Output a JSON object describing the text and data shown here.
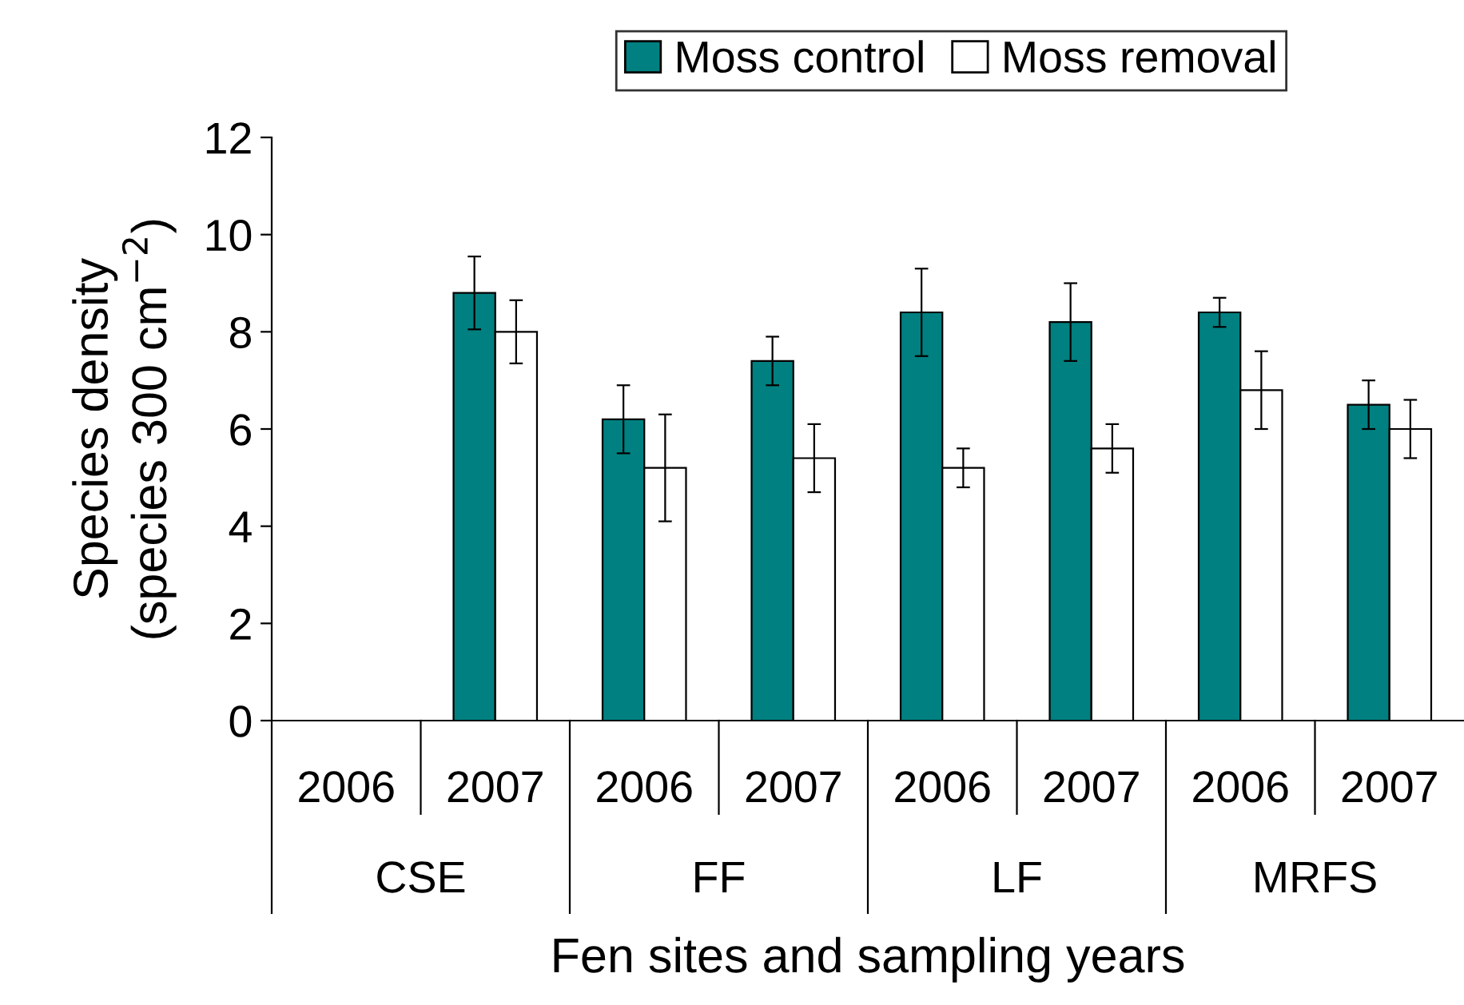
{
  "chart_data": {
    "type": "bar",
    "xlabel": "Fen sites and sampling years",
    "ylabel": "Species density\n(species 300 cm$^{−2}$)",
    "categories": [
      "2006",
      "2007",
      "2006",
      "2007",
      "2006",
      "2007",
      "2006",
      "2007"
    ],
    "annotations": [
      "CSE",
      "FF",
      "LF",
      "MRFS"
    ],
    "series": [
      {
        "name": "Moss control",
        "color": "#008080",
        "values": [
          null,
          8.8,
          6.2,
          7.4,
          8.4,
          8.2,
          8.4,
          6.5
        ],
        "errors": [
          null,
          0.75,
          0.7,
          0.5,
          0.9,
          0.8,
          0.3,
          0.5
        ]
      },
      {
        "name": "Moss removal",
        "color": "#ffffff",
        "values": [
          null,
          8.0,
          5.2,
          5.4,
          5.2,
          5.6,
          6.8,
          6.0
        ],
        "errors": [
          null,
          0.65,
          1.1,
          0.7,
          0.4,
          0.5,
          0.8,
          0.6
        ]
      }
    ],
    "ylim": [
      0,
      12
    ],
    "yticks": [
      0,
      2,
      4,
      6,
      8,
      10,
      12
    ],
    "grid": false,
    "legend": "top"
  }
}
